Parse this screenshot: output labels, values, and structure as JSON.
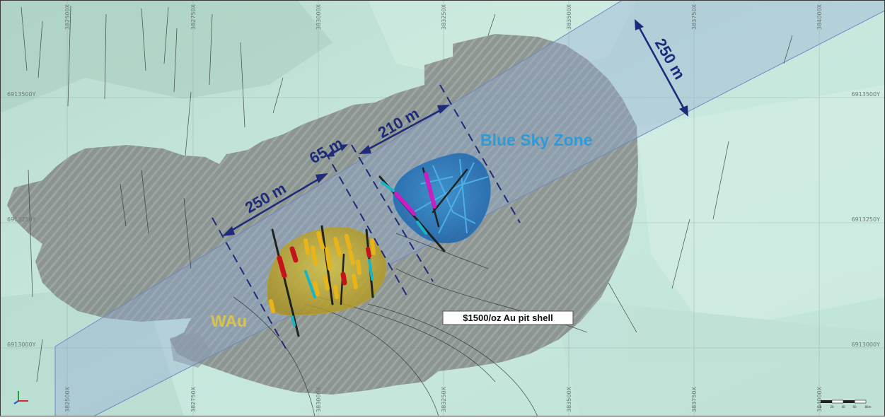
{
  "map": {
    "background_color": "#c9e8df",
    "grid_easting_labels": [
      "382500X",
      "382750X",
      "383000X",
      "383250X",
      "383500X",
      "383750X",
      "384000X"
    ],
    "grid_northing_labels": [
      "6913500Y",
      "6913250Y",
      "6913000Y"
    ],
    "zones": {
      "blue_sky": {
        "label": "Blue Sky Zone",
        "color": "#2f9ad6"
      },
      "wau": {
        "label": "WAu",
        "color": "#d8c44a"
      }
    },
    "pit_shell": {
      "label": "$1500/oz Au pit shell"
    },
    "dimensions": {
      "total_strike": "250 m",
      "gap": "65 m",
      "blue_sky_length": "210 m",
      "corridor_width": "250 m"
    },
    "scale_bar": {
      "ticks": [
        "0",
        "20",
        "40",
        "60",
        "80m"
      ]
    },
    "colors": {
      "dimension_line": "#1f2a7a",
      "corridor_fill": "#93abd6",
      "pit_shell": "#7d807e",
      "drill_trace": "#1e2320",
      "assay_red": "#c4141b",
      "assay_cyan": "#18b5c8",
      "assay_magenta": "#c71fc2",
      "assay_yellow": "#e8b41a"
    }
  }
}
